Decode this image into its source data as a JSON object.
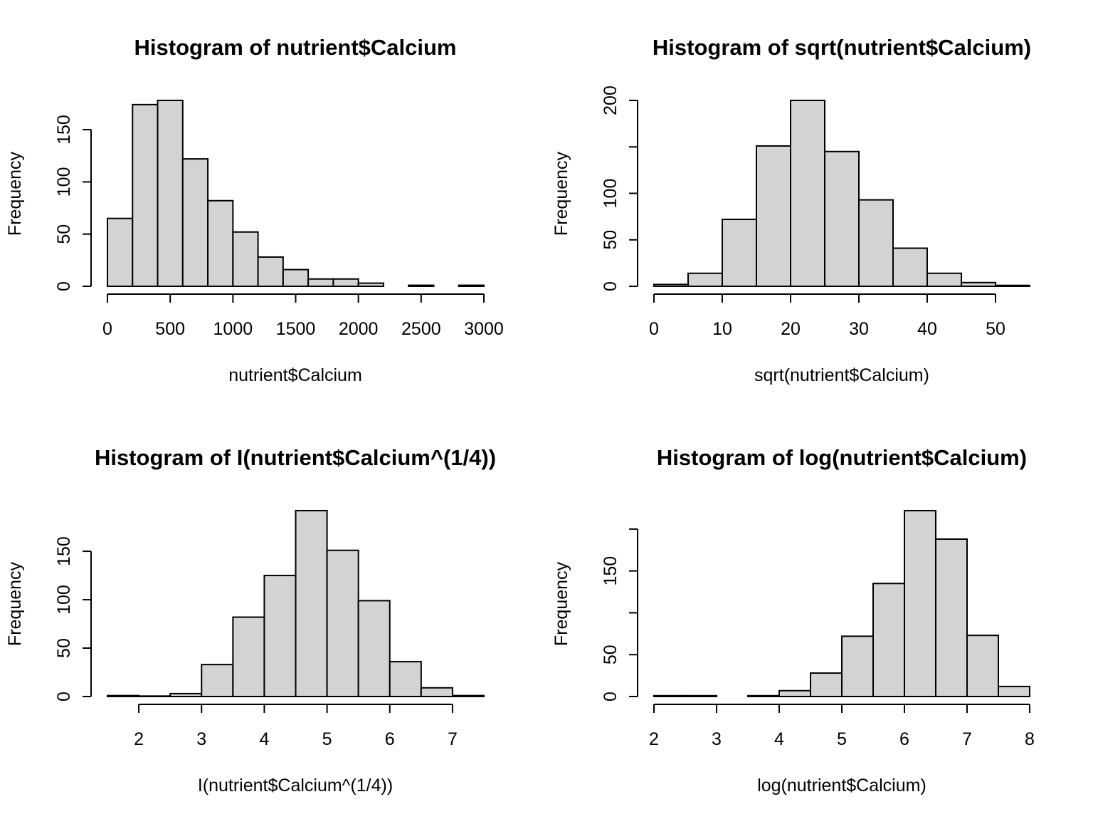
{
  "chart_data": [
    {
      "type": "bar",
      "title": "Histogram of nutrient$Calcium",
      "xlabel": "nutrient$Calcium",
      "ylabel": "Frequency",
      "breaks": [
        0,
        200,
        400,
        600,
        800,
        1000,
        1200,
        1400,
        1600,
        1800,
        2000,
        2200,
        2400,
        2600,
        2800,
        3000
      ],
      "values": [
        65,
        174,
        178,
        122,
        82,
        52,
        28,
        16,
        7,
        7,
        3,
        0,
        1,
        0,
        1
      ],
      "xlim": [
        0,
        3000
      ],
      "ylim": [
        0,
        178
      ],
      "xticks": [
        0,
        500,
        1000,
        1500,
        2000,
        2500,
        3000
      ],
      "yticks": [
        0,
        50,
        100,
        150
      ],
      "xtick_labels": [
        "0",
        "500",
        "1000",
        "1500",
        "2000",
        "2500",
        "3000"
      ],
      "ytick_labels": [
        "0",
        "50",
        "100",
        "150"
      ]
    },
    {
      "type": "bar",
      "title": "Histogram of sqrt(nutrient$Calcium)",
      "xlabel": "sqrt(nutrient$Calcium)",
      "ylabel": "Frequency",
      "breaks": [
        0,
        5,
        10,
        15,
        20,
        25,
        30,
        35,
        40,
        45,
        50,
        55
      ],
      "values": [
        2,
        14,
        72,
        151,
        200,
        145,
        93,
        41,
        14,
        4,
        1
      ],
      "xlim": [
        0,
        55
      ],
      "ylim": [
        0,
        200
      ],
      "xticks": [
        0,
        10,
        20,
        30,
        40,
        50
      ],
      "yticks": [
        0,
        50,
        100,
        150,
        200
      ],
      "xtick_labels": [
        "0",
        "10",
        "20",
        "30",
        "40",
        "50"
      ],
      "ytick_labels": [
        "0",
        "50",
        "100",
        "",
        "200"
      ]
    },
    {
      "type": "bar",
      "title": "Histogram of I(nutrient$Calcium^(1/4))",
      "xlabel": "I(nutrient$Calcium^(1/4))",
      "ylabel": "Frequency",
      "breaks": [
        1.5,
        2,
        2.5,
        3,
        3.5,
        4,
        4.5,
        5,
        5.5,
        6,
        6.5,
        7,
        7.5
      ],
      "values": [
        1,
        0.5,
        3,
        33,
        82,
        125,
        192,
        151,
        99,
        36,
        9,
        1
      ],
      "xlim": [
        1.5,
        7.5
      ],
      "ylim": [
        0,
        192
      ],
      "xticks": [
        2,
        3,
        4,
        5,
        6,
        7
      ],
      "yticks": [
        0,
        50,
        100,
        150
      ],
      "xtick_labels": [
        "2",
        "3",
        "4",
        "5",
        "6",
        "7"
      ],
      "ytick_labels": [
        "0",
        "50",
        "100",
        "150"
      ]
    },
    {
      "type": "bar",
      "title": "Histogram of log(nutrient$Calcium)",
      "xlabel": "log(nutrient$Calcium)",
      "ylabel": "Frequency",
      "breaks": [
        2,
        2.5,
        3,
        3.5,
        4,
        4.5,
        5,
        5.5,
        6,
        6.5,
        7,
        7.5,
        8
      ],
      "values": [
        1,
        1,
        0,
        1,
        7,
        28,
        72,
        135,
        222,
        188,
        73,
        12
      ],
      "xlim": [
        2,
        8
      ],
      "ylim": [
        0,
        222
      ],
      "xticks": [
        2,
        3,
        4,
        5,
        6,
        7,
        8
      ],
      "yticks": [
        0,
        50,
        100,
        150,
        200
      ],
      "xtick_labels": [
        "2",
        "3",
        "4",
        "5",
        "6",
        "7",
        "8"
      ],
      "ytick_labels": [
        "0",
        "50",
        "",
        "150",
        ""
      ]
    }
  ]
}
